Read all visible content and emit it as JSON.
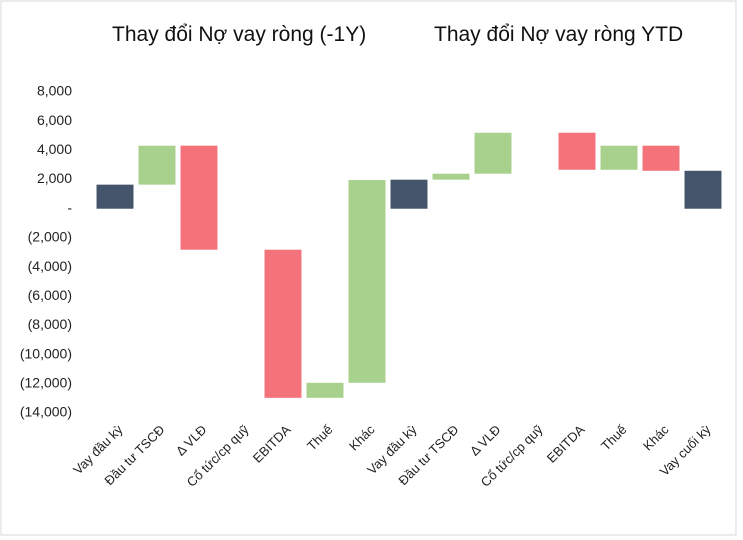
{
  "chart_data": {
    "type": "waterfall",
    "titles": [
      "Thay đổi Nợ vay ròng (-1Y)",
      "Thay đổi Nợ vay ròng YTD"
    ],
    "categories": [
      "Vay đầu kỳ",
      "Đầu tư TSCĐ",
      "Δ VLĐ",
      "Cổ tức/cp quỹ",
      "EBITDA",
      "Thuế",
      "Khác",
      "Vay đầu kỳ",
      "Đầu tư TSCĐ",
      "Δ VLĐ",
      "Cổ tức/cp quỹ",
      "EBITDA",
      "Thuế",
      "Khác",
      "Vay cuối kỳ"
    ],
    "measures": [
      "total",
      "relative",
      "relative",
      "relative",
      "relative",
      "relative",
      "relative",
      "total",
      "relative",
      "relative",
      "relative",
      "relative",
      "relative",
      "relative",
      "total"
    ],
    "values": [
      1650,
      2670,
      -7130,
      0,
      -10150,
      1030,
      13900,
      1990,
      410,
      2810,
      0,
      -2540,
      1650,
      -1720,
      2600
    ],
    "colors": {
      "total": "#44546a",
      "increase": "#a9d18e",
      "decrease": "#f4737b"
    },
    "ylim": [
      -14000,
      8000
    ],
    "yticks": [
      {
        "value": -14000,
        "label": "(14,000)"
      },
      {
        "value": -12000,
        "label": "(12,000)"
      },
      {
        "value": -10000,
        "label": "(10,000)"
      },
      {
        "value": -8000,
        "label": "(8,000)"
      },
      {
        "value": -6000,
        "label": "(6,000)"
      },
      {
        "value": -4000,
        "label": "(4,000)"
      },
      {
        "value": -2000,
        "label": "(2,000)"
      },
      {
        "value": 0,
        "label": "-"
      },
      {
        "value": 2000,
        "label": "2,000"
      },
      {
        "value": 4000,
        "label": "4,000"
      },
      {
        "value": 6000,
        "label": "6,000"
      },
      {
        "value": 8000,
        "label": "8,000"
      }
    ]
  }
}
